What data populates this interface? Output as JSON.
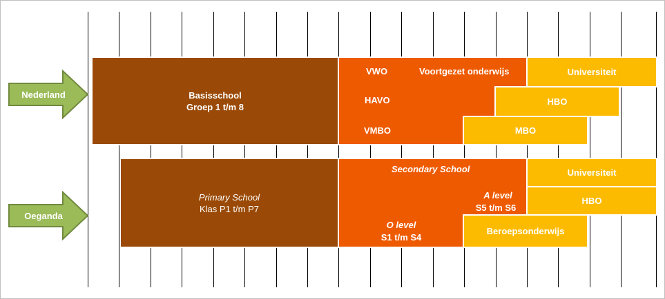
{
  "countries": {
    "nl": {
      "label": "Nederland"
    },
    "ug": {
      "label": "Oeganda"
    }
  },
  "nl": {
    "basis_title": "Basisschool",
    "basis_sub": "Groep 1 t/m 8",
    "vwo": "VWO",
    "havo": "HAVO",
    "vmbo": "VMBO",
    "voortgezet": "Voortgezet onderwijs",
    "universiteit": "Universiteit",
    "hbo": "HBO",
    "mbo": "MBO"
  },
  "ug": {
    "primary_title": "Primary School",
    "primary_sub": "Klas P1 t/m P7",
    "secondary": "Secondary School",
    "a_level": "A level",
    "a_level_sub": "S5 t/m S6",
    "o_level": "O level",
    "o_level_sub": "S1 t/m S4",
    "universiteit": "Universiteit",
    "hbo": "HBO",
    "beroeps": "Beroepsonderwijs"
  },
  "colors": {
    "arrow_fill": "#9bbb59",
    "arrow_stroke": "#71893f",
    "primary": "#9a4a06",
    "secondary": "#ee5a00",
    "higher": "#fdbb00"
  }
}
